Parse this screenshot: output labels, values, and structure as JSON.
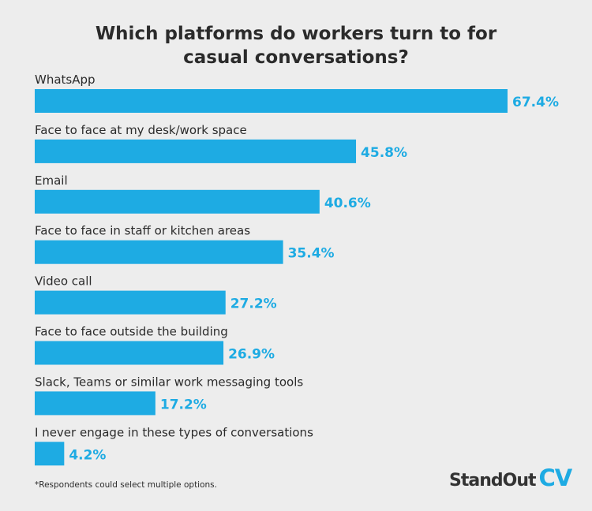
{
  "chart_data": {
    "type": "bar",
    "orientation": "horizontal",
    "title": "Which platforms do workers turn to for casual conversations?",
    "title_lines": [
      "Which platforms do workers turn to for",
      "casual conversations?"
    ],
    "categories": [
      "WhatsApp",
      "Face to face at my desk/work space",
      "Email",
      "Face to face in staff or kitchen areas",
      "Video call",
      "Face to face outside the building",
      "Slack, Teams or similar work messaging tools",
      "I never engage in these types of conversations"
    ],
    "values": [
      67.4,
      45.8,
      40.6,
      35.4,
      27.2,
      26.9,
      17.2,
      4.2
    ],
    "value_labels": [
      "67.4%",
      "45.8%",
      "40.6%",
      "35.4%",
      "27.2%",
      "26.9%",
      "17.2%",
      "4.2%"
    ],
    "unit": "%",
    "bar_color": "#1eabe3",
    "grid": false,
    "legend": "none"
  },
  "footnote": "*Respondents could select multiple options.",
  "logo": {
    "text_a": "StandOut",
    "text_b": "CV"
  }
}
